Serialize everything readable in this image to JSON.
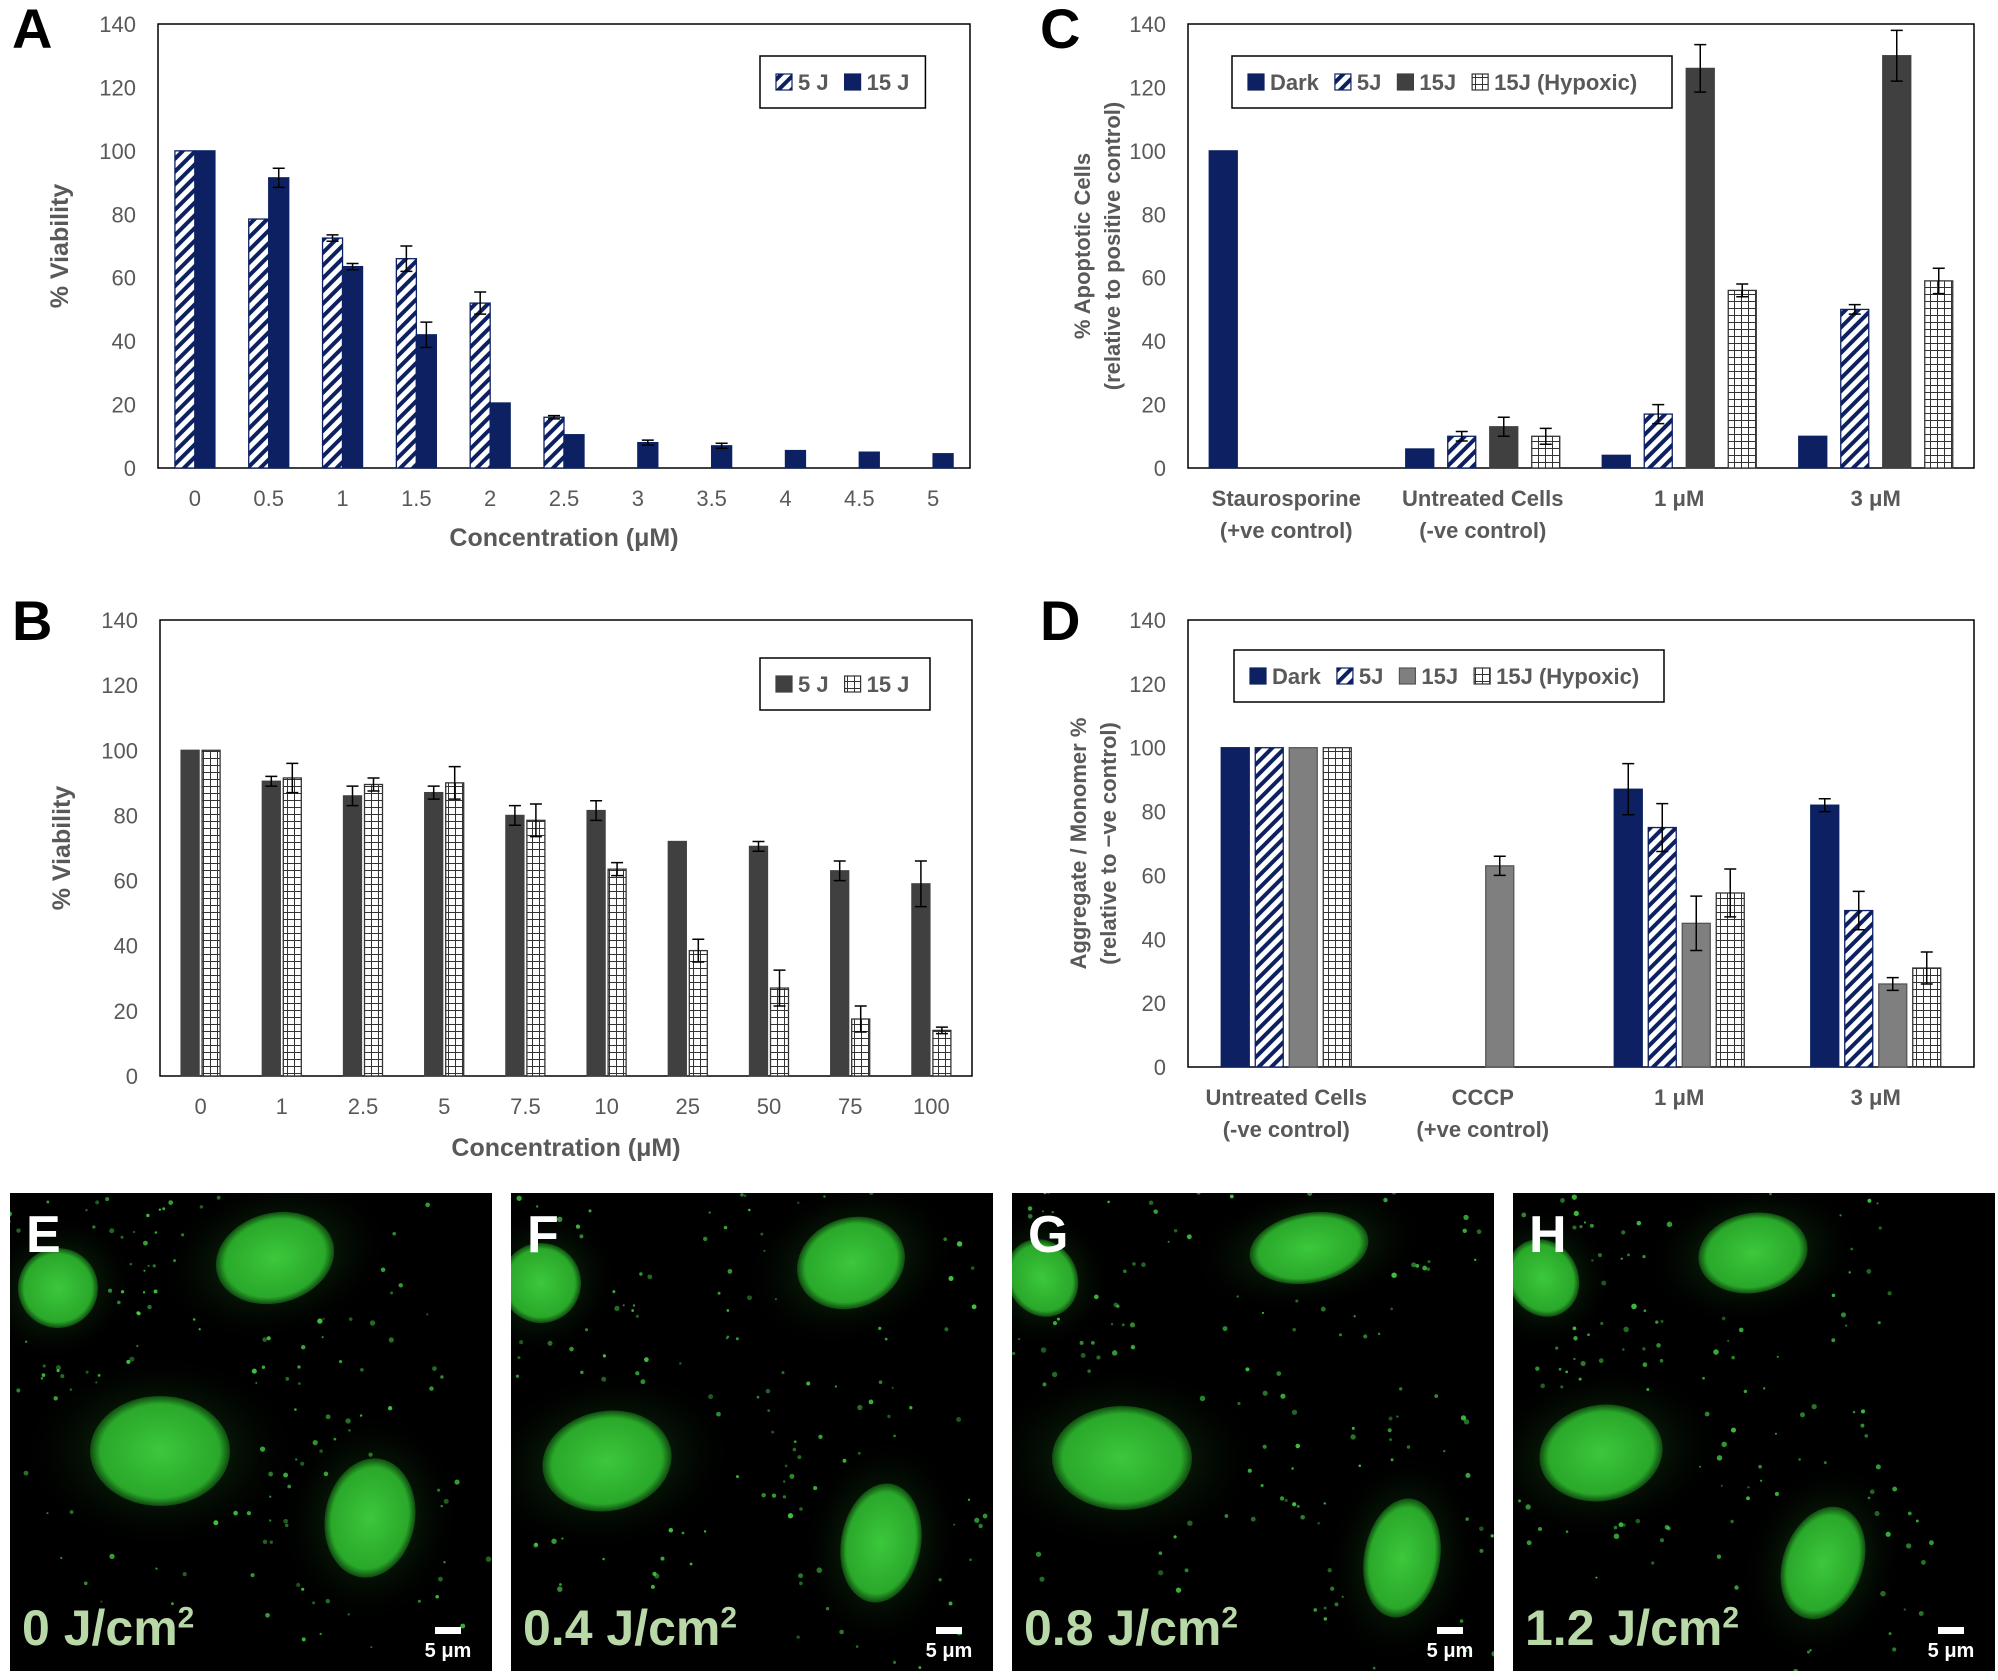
{
  "panels": [
    {
      "letter": "A"
    },
    {
      "letter": "B"
    },
    {
      "letter": "C"
    },
    {
      "letter": "D"
    }
  ],
  "colors": {
    "navy": "#0d2162",
    "dark_gray": "#404040",
    "mid_gray": "#7f7f7f",
    "white": "#ffffff",
    "hatch_stripe": "#0d2162",
    "grid": "#000000"
  },
  "chart_data": [
    {
      "type": "bar",
      "panel": "A",
      "categories": [
        "0",
        "0.5",
        "1",
        "1.5",
        "2",
        "2.5",
        "3",
        "3.5",
        "4",
        "4.5",
        "5"
      ],
      "series": [
        {
          "name": "5 J",
          "pattern": "diagonal-stripe",
          "values": [
            100,
            78.5,
            72.5,
            66,
            52,
            16,
            null,
            null,
            null,
            null,
            null
          ],
          "errors": [
            0,
            0,
            1,
            4,
            3.5,
            0.5,
            null,
            null,
            null,
            null,
            null
          ]
        },
        {
          "name": "15 J",
          "pattern": "solid-navy",
          "values": [
            100,
            91.5,
            63.5,
            42,
            20.5,
            10.5,
            8,
            7,
            5.5,
            5,
            4.5
          ],
          "errors": [
            0,
            3,
            1,
            4,
            0,
            0,
            0.8,
            0.8,
            0,
            0,
            0
          ]
        }
      ],
      "xlabel": "Concentration (μM)",
      "ylabel": "% Viability",
      "ylim": [
        0,
        140
      ],
      "yticks": [
        0,
        20,
        40,
        60,
        80,
        100,
        120,
        140
      ],
      "legend_placement": "top-right"
    },
    {
      "type": "bar",
      "panel": "B",
      "categories": [
        "0",
        "1",
        "2.5",
        "5",
        "7.5",
        "10",
        "25",
        "50",
        "75",
        "100"
      ],
      "series": [
        {
          "name": "5 J",
          "pattern": "solid-dark-gray",
          "values": [
            100,
            90.5,
            86,
            87,
            80,
            81.5,
            72,
            70.5,
            63,
            59
          ],
          "errors": [
            0,
            1.5,
            3,
            2,
            3,
            3,
            0,
            1.5,
            3,
            7
          ]
        },
        {
          "name": "15 J",
          "pattern": "grid-white",
          "values": [
            100,
            91.5,
            89.5,
            90,
            78.5,
            63.5,
            38.5,
            27,
            17.5,
            14
          ],
          "errors": [
            0,
            4.5,
            2,
            5,
            5,
            2,
            3.5,
            5.5,
            4,
            1
          ]
        }
      ],
      "xlabel": "Concentration (μM)",
      "ylabel": "% Viability",
      "ylim": [
        0,
        140
      ],
      "yticks": [
        0,
        20,
        40,
        60,
        80,
        100,
        120,
        140
      ],
      "legend_placement": "top-right"
    },
    {
      "type": "bar",
      "panel": "C",
      "categories": [
        [
          "Staurosporine",
          "(+ve control)"
        ],
        [
          "Untreated Cells",
          "(-ve control)"
        ],
        [
          "1 μM"
        ],
        [
          "3 μM"
        ]
      ],
      "series": [
        {
          "name": "Dark",
          "pattern": "solid-navy",
          "values": [
            100,
            6,
            4,
            10
          ],
          "errors": [
            0,
            0,
            0,
            0
          ]
        },
        {
          "name": "5J",
          "pattern": "diagonal-stripe",
          "values": [
            null,
            10,
            17,
            50
          ],
          "errors": [
            null,
            1.5,
            3,
            1.5
          ]
        },
        {
          "name": "15J",
          "pattern": "solid-dark-gray",
          "values": [
            null,
            13,
            126,
            130
          ],
          "errors": [
            null,
            3,
            7.5,
            8
          ]
        },
        {
          "name": "15J (Hypoxic)",
          "pattern": "grid-white",
          "values": [
            null,
            10,
            56,
            59
          ],
          "errors": [
            null,
            2.5,
            2,
            4
          ]
        }
      ],
      "xlabel": "",
      "ylabel": [
        "% Apoptotic Cells",
        "(relative to positive control)"
      ],
      "ylim": [
        0,
        140
      ],
      "yticks": [
        0,
        20,
        40,
        60,
        80,
        100,
        120,
        140
      ],
      "legend_placement": "top-left"
    },
    {
      "type": "bar",
      "panel": "D",
      "categories": [
        [
          "Untreated Cells",
          "(-ve control)"
        ],
        [
          "CCCP",
          "(+ve control)"
        ],
        [
          "1 μM"
        ],
        [
          "3 μM"
        ]
      ],
      "series": [
        {
          "name": "Dark",
          "pattern": "solid-navy",
          "values": [
            100,
            null,
            87,
            82
          ],
          "errors": [
            0,
            null,
            8,
            2
          ]
        },
        {
          "name": "5J",
          "pattern": "diagonal-stripe",
          "values": [
            100,
            null,
            75,
            49
          ],
          "errors": [
            0,
            null,
            7.5,
            6
          ]
        },
        {
          "name": "15J",
          "pattern": "solid-mid-gray",
          "values": [
            100,
            63,
            45,
            26
          ],
          "errors": [
            0,
            3,
            8.5,
            2
          ]
        },
        {
          "name": "15J (Hypoxic)",
          "pattern": "grid-white",
          "values": [
            100,
            null,
            54.5,
            31
          ],
          "errors": [
            0,
            null,
            7.5,
            5
          ]
        }
      ],
      "xlabel": "",
      "ylabel": [
        "Aggregate / Monomer %",
        "(relative to −ve control)"
      ],
      "ylim": [
        0,
        140
      ],
      "yticks": [
        0,
        20,
        40,
        60,
        80,
        100,
        120,
        140
      ],
      "legend_placement": "top-left"
    }
  ],
  "micrographs": [
    {
      "letter": "E",
      "dose": "0 J/cm",
      "dose_sup": "2",
      "scale": "5 μm"
    },
    {
      "letter": "F",
      "dose": "0.4 J/cm",
      "dose_sup": "2",
      "scale": "5 μm"
    },
    {
      "letter": "G",
      "dose": "0.8 J/cm",
      "dose_sup": "2",
      "scale": "5 μm"
    },
    {
      "letter": "H",
      "dose": "1.2 J/cm",
      "dose_sup": "2",
      "scale": "5 μm"
    }
  ]
}
